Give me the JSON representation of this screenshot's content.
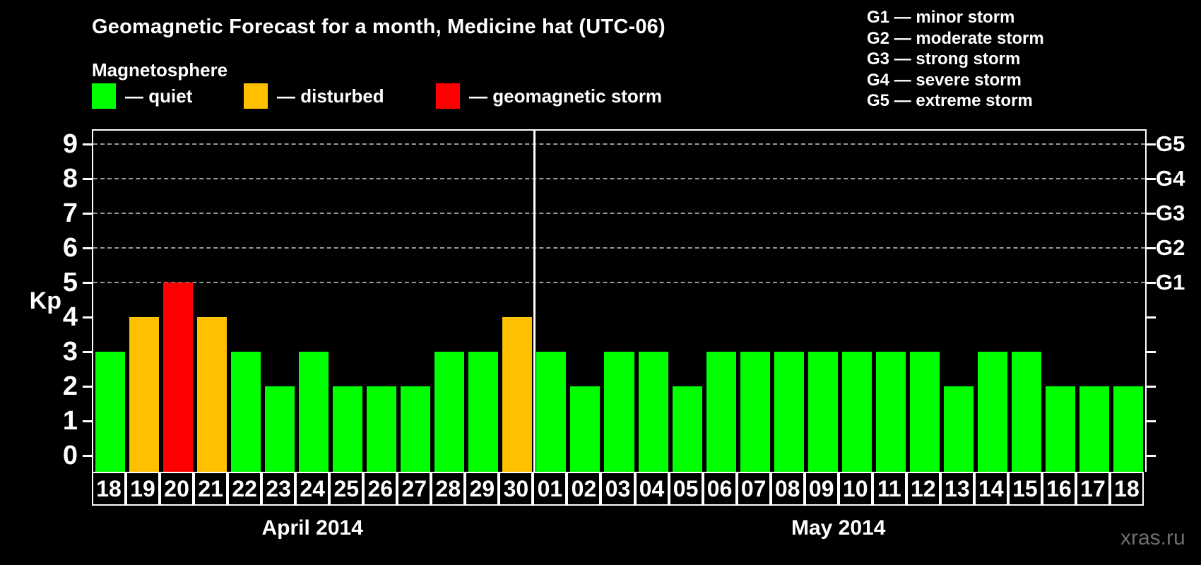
{
  "header": {
    "title": "Geomagnetic Forecast for a month, Medicine hat (UTC-06)",
    "subtitle": "Magnetosphere"
  },
  "legend": {
    "items": [
      {
        "label": "— quiet",
        "status": "quiet"
      },
      {
        "label": "— disturbed",
        "status": "disturbed"
      },
      {
        "label": "— geomagnetic storm",
        "status": "storm"
      }
    ]
  },
  "g_legend": {
    "items": [
      "G1 — minor storm",
      "G2 — moderate storm",
      "G3 — strong storm",
      "G4 — severe storm",
      "G5 — extreme storm"
    ]
  },
  "footer": {
    "watermark": "xras.ru"
  },
  "chart_data": {
    "type": "bar",
    "title": "Geomagnetic Forecast for a month, Medicine hat (UTC-06)",
    "subtitle": "Magnetosphere",
    "xlabel": "",
    "ylabel": "Kp",
    "ylim": [
      0,
      9
    ],
    "yticks": [
      0,
      1,
      2,
      3,
      4,
      5,
      6,
      7,
      8,
      9
    ],
    "gridlines_at": [
      5,
      6,
      7,
      8,
      9
    ],
    "grid_style": "dashed horizontal lines only at storm levels G1–G5",
    "legend_position": "top-left",
    "right_axis": [
      {
        "kp": 5,
        "label": "G1"
      },
      {
        "kp": 6,
        "label": "G2"
      },
      {
        "kp": 7,
        "label": "G3"
      },
      {
        "kp": 8,
        "label": "G4"
      },
      {
        "kp": 9,
        "label": "G5"
      }
    ],
    "colors": {
      "quiet": "#00ff00",
      "disturbed": "#ffc000",
      "storm": "#ff0000"
    },
    "groups": [
      {
        "label": "April 2014",
        "days": [
          {
            "day": "18",
            "kp": 3,
            "status": "quiet"
          },
          {
            "day": "19",
            "kp": 4,
            "status": "disturbed"
          },
          {
            "day": "20",
            "kp": 5,
            "status": "storm"
          },
          {
            "day": "21",
            "kp": 4,
            "status": "disturbed"
          },
          {
            "day": "22",
            "kp": 3,
            "status": "quiet"
          },
          {
            "day": "23",
            "kp": 2,
            "status": "quiet"
          },
          {
            "day": "24",
            "kp": 3,
            "status": "quiet"
          },
          {
            "day": "25",
            "kp": 2,
            "status": "quiet"
          },
          {
            "day": "26",
            "kp": 2,
            "status": "quiet"
          },
          {
            "day": "27",
            "kp": 2,
            "status": "quiet"
          },
          {
            "day": "28",
            "kp": 3,
            "status": "quiet"
          },
          {
            "day": "29",
            "kp": 3,
            "status": "quiet"
          },
          {
            "day": "30",
            "kp": 4,
            "status": "disturbed"
          }
        ]
      },
      {
        "label": "May 2014",
        "days": [
          {
            "day": "01",
            "kp": 3,
            "status": "quiet"
          },
          {
            "day": "02",
            "kp": 2,
            "status": "quiet"
          },
          {
            "day": "03",
            "kp": 3,
            "status": "quiet"
          },
          {
            "day": "04",
            "kp": 3,
            "status": "quiet"
          },
          {
            "day": "05",
            "kp": 2,
            "status": "quiet"
          },
          {
            "day": "06",
            "kp": 3,
            "status": "quiet"
          },
          {
            "day": "07",
            "kp": 3,
            "status": "quiet"
          },
          {
            "day": "08",
            "kp": 3,
            "status": "quiet"
          },
          {
            "day": "09",
            "kp": 3,
            "status": "quiet"
          },
          {
            "day": "10",
            "kp": 3,
            "status": "quiet"
          },
          {
            "day": "11",
            "kp": 3,
            "status": "quiet"
          },
          {
            "day": "12",
            "kp": 3,
            "status": "quiet"
          },
          {
            "day": "13",
            "kp": 2,
            "status": "quiet"
          },
          {
            "day": "14",
            "kp": 3,
            "status": "quiet"
          },
          {
            "day": "15",
            "kp": 3,
            "status": "quiet"
          },
          {
            "day": "16",
            "kp": 2,
            "status": "quiet"
          },
          {
            "day": "17",
            "kp": 2,
            "status": "quiet"
          },
          {
            "day": "18",
            "kp": 2,
            "status": "quiet"
          }
        ]
      }
    ]
  }
}
